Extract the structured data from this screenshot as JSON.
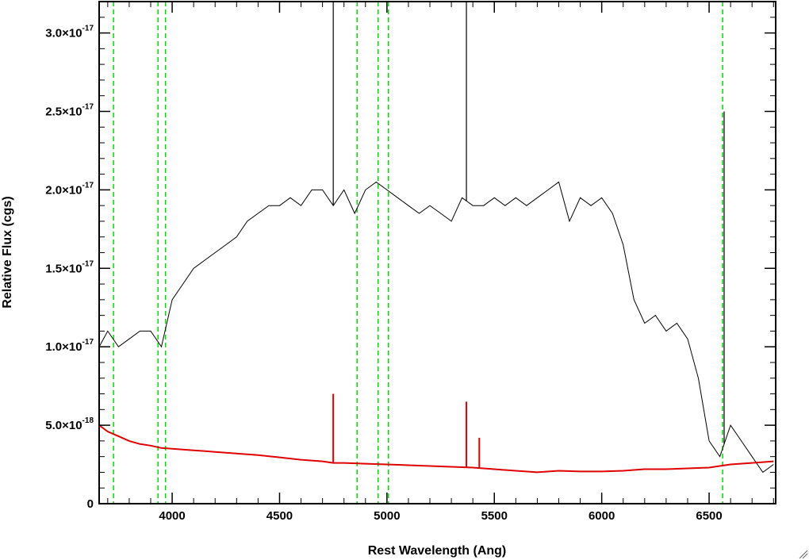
{
  "chart_data": {
    "type": "line",
    "title": "",
    "xlabel": "Rest Wavelength (Ang)",
    "ylabel": "Relative Flux (cgs)",
    "xlim": [
      3660,
      6810
    ],
    "ylim": [
      0,
      3.2e-17
    ],
    "xticks": [
      {
        "value": 4000,
        "label": "4000"
      },
      {
        "value": 4500,
        "label": "4500"
      },
      {
        "value": 5000,
        "label": "5000"
      },
      {
        "value": 5500,
        "label": "5500"
      },
      {
        "value": 6000,
        "label": "6000"
      },
      {
        "value": 6500,
        "label": "6500"
      }
    ],
    "yticks": [
      {
        "value": 0,
        "mantissa": "0",
        "exponent": ""
      },
      {
        "value": 5e-18,
        "mantissa": "5.0×10",
        "exponent": "-18"
      },
      {
        "value": 1e-17,
        "mantissa": "1.0×10",
        "exponent": "-17"
      },
      {
        "value": 1.5e-17,
        "mantissa": "1.5×10",
        "exponent": "-17"
      },
      {
        "value": 2e-17,
        "mantissa": "2.0×10",
        "exponent": "-17"
      },
      {
        "value": 2.5e-17,
        "mantissa": "2.5×10",
        "exponent": "-17"
      },
      {
        "value": 3e-17,
        "mantissa": "3.0×10",
        "exponent": "-17"
      }
    ],
    "grid": false,
    "legend": false,
    "line_markers": [
      3727,
      3934,
      3969,
      4861,
      4959,
      5007,
      6563
    ],
    "series": [
      {
        "color": "#000000",
        "x": [
          3660,
          3700,
          3750,
          3800,
          3850,
          3900,
          3950,
          4000,
          4050,
          4100,
          4150,
          4200,
          4250,
          4300,
          4350,
          4400,
          4450,
          4500,
          4550,
          4600,
          4650,
          4700,
          4750,
          4800,
          4850,
          4900,
          4950,
          5000,
          5050,
          5100,
          5150,
          5200,
          5250,
          5300,
          5350,
          5400,
          5450,
          5500,
          5550,
          5600,
          5650,
          5700,
          5750,
          5800,
          5850,
          5900,
          5950,
          6000,
          6050,
          6100,
          6150,
          6200,
          6250,
          6300,
          6350,
          6400,
          6450,
          6500,
          6550,
          6600,
          6650,
          6700,
          6750,
          6800
        ],
        "y": [
          1e-17,
          1.1e-17,
          1e-17,
          1.05e-17,
          1.1e-17,
          1.1e-17,
          1e-17,
          1.3e-17,
          1.4e-17,
          1.5e-17,
          1.55e-17,
          1.6e-17,
          1.65e-17,
          1.7e-17,
          1.8e-17,
          1.85e-17,
          1.9e-17,
          1.9e-17,
          1.95e-17,
          1.9e-17,
          2e-17,
          2e-17,
          1.9e-17,
          2e-17,
          1.85e-17,
          2e-17,
          2.05e-17,
          2e-17,
          1.95e-17,
          1.9e-17,
          1.85e-17,
          1.9e-17,
          1.85e-17,
          1.8e-17,
          1.95e-17,
          1.9e-17,
          1.9e-17,
          1.95e-17,
          1.9e-17,
          1.95e-17,
          1.9e-17,
          1.95e-17,
          2e-17,
          2.05e-17,
          1.8e-17,
          1.95e-17,
          1.9e-17,
          1.95e-17,
          1.85e-17,
          1.65e-17,
          1.3e-17,
          1.15e-17,
          1.2e-17,
          1.1e-17,
          1.15e-17,
          1.05e-17,
          8e-18,
          4e-18,
          3e-18,
          5e-18,
          4e-18,
          3e-18,
          2e-18,
          2.5e-18
        ]
      },
      {
        "color": "#e00000",
        "x": [
          3660,
          3700,
          3750,
          3800,
          3850,
          3900,
          3950,
          4000,
          4100,
          4200,
          4300,
          4400,
          4500,
          4600,
          4700,
          4750,
          4800,
          4900,
          5000,
          5100,
          5200,
          5300,
          5400,
          5500,
          5600,
          5700,
          5800,
          5900,
          6000,
          6100,
          6200,
          6300,
          6400,
          6500,
          6600,
          6700,
          6800
        ],
        "y": [
          5e-18,
          4.6e-18,
          4.3e-18,
          4e-18,
          3.8e-18,
          3.7e-18,
          3.55e-18,
          3.5e-18,
          3.4e-18,
          3.3e-18,
          3.2e-18,
          3.1e-18,
          2.95e-18,
          2.8e-18,
          2.7e-18,
          2.6e-18,
          2.6e-18,
          2.55e-18,
          2.5e-18,
          2.45e-18,
          2.4e-18,
          2.35e-18,
          2.3e-18,
          2.2e-18,
          2.1e-18,
          2e-18,
          2.1e-18,
          2.05e-18,
          2.05e-18,
          2.1e-18,
          2.2e-18,
          2.2e-18,
          2.25e-18,
          2.3e-18,
          2.5e-18,
          2.6e-18,
          2.7e-18
        ]
      }
    ],
    "emission_spikes": [
      {
        "series": 0,
        "x": 4750,
        "y": 3.2e-17
      },
      {
        "series": 0,
        "x": 5370,
        "y": 3.2e-17
      },
      {
        "series": 0,
        "x": 6570,
        "y": 2.5e-17
      },
      {
        "series": 1,
        "x": 4750,
        "y": 7e-18
      },
      {
        "series": 1,
        "x": 5370,
        "y": 6.5e-18
      },
      {
        "series": 1,
        "x": 5430,
        "y": 4.2e-18
      }
    ]
  }
}
